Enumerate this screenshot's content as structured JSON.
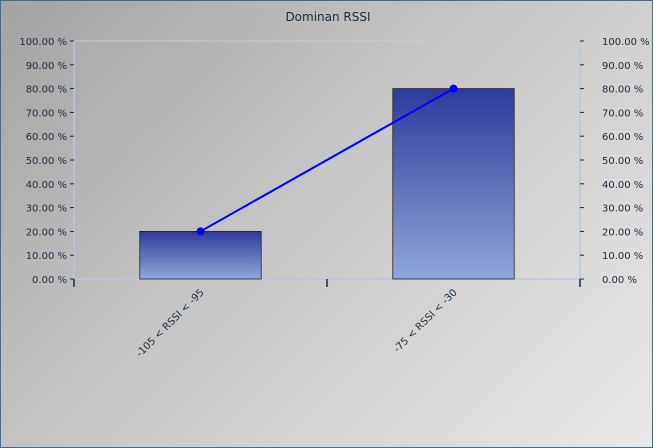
{
  "chart_data": {
    "type": "bar",
    "title": "Dominan RSSI",
    "categories": [
      "-105 < RSSI < -95",
      "-75 < RSSI < -30"
    ],
    "series": [
      {
        "kind": "bar",
        "values": [
          20,
          80
        ]
      },
      {
        "kind": "line",
        "values": [
          20,
          80
        ]
      }
    ],
    "y_ticks": [
      "0.00 %",
      "10.00 %",
      "20.00 %",
      "30.00 %",
      "40.00 %",
      "50.00 %",
      "60.00 %",
      "70.00 %",
      "80.00 %",
      "90.00 %",
      "100.00 %"
    ],
    "ylim": [
      0,
      100
    ],
    "grid": false,
    "colors": {
      "bar_top": "#2d3a9c",
      "bar_bottom": "#8fa8d8",
      "line": "#0000ff",
      "axis": "#b8c8d8",
      "tick_text": "#1e2a3a"
    }
  }
}
